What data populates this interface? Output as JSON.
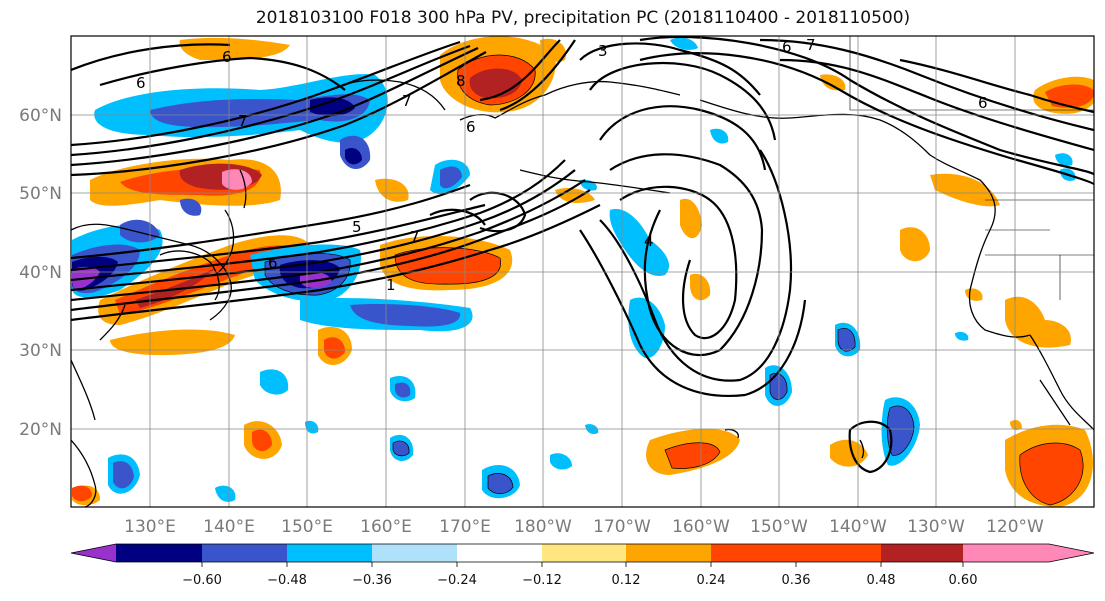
{
  "title": "2018103100 F018 300 hPa PV, precipitation PC (2018110400 - 2018110500)",
  "lat_labels": [
    "60°N",
    "50°N",
    "40°N",
    "30°N",
    "20°N"
  ],
  "lon_labels": [
    "130°E",
    "140°E",
    "150°E",
    "160°E",
    "170°E",
    "180°W",
    "170°W",
    "160°W",
    "150°W",
    "140°W",
    "130°W",
    "120°W"
  ],
  "colorbar": {
    "colors": [
      "#9932cc",
      "#000080",
      "#3a55cc",
      "#00bfff",
      "#afe1fb",
      "#ffffff",
      "#ffe680",
      "#ffa500",
      "#ff4500",
      "#b22222",
      "#ff88b8"
    ],
    "tick_labels": [
      "−0.60",
      "−0.48",
      "−0.36",
      "−0.24",
      "−0.12",
      "0.12",
      "0.24",
      "0.36",
      "0.48",
      "0.60"
    ]
  },
  "contour_labels": [
    "6",
    "6",
    "7",
    "8",
    "6",
    "3",
    "6",
    "7",
    "6",
    "7",
    "7",
    "1",
    "6",
    "4",
    "5"
  ]
}
